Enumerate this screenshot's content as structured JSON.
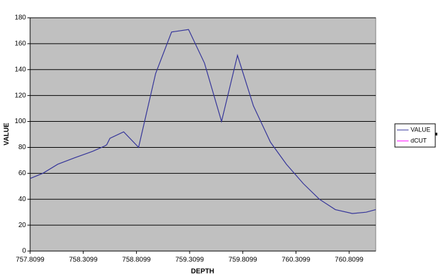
{
  "chart_data": {
    "type": "line",
    "x_label": "DEPTH",
    "y_label": "VALUE",
    "x": [
      757.8099,
      757.93,
      758.07,
      758.23,
      758.4,
      758.51,
      758.53,
      758.56,
      758.69,
      758.83,
      758.99,
      759.14,
      759.3,
      759.45,
      759.61,
      759.76,
      759.91,
      760.07,
      760.22,
      760.38,
      760.53,
      760.68,
      760.84,
      760.97,
      761.06
    ],
    "series": [
      {
        "name": "VALUE",
        "color": "#333399",
        "values": [
          56,
          60,
          67,
          72,
          77,
          81,
          82,
          87,
          92,
          80,
          137,
          169,
          171,
          145,
          100,
          151,
          112,
          84,
          67,
          52,
          40,
          32,
          29,
          30,
          32
        ]
      },
      {
        "name": "dCUT",
        "color": "#ff00ff",
        "values": [
          null,
          null,
          null,
          null,
          null,
          null,
          null,
          null,
          null,
          null,
          null,
          null,
          null,
          null,
          null,
          null,
          null,
          null,
          null,
          null,
          null,
          null,
          null,
          null,
          null
        ]
      }
    ],
    "xlim": [
      757.8099,
      761.06
    ],
    "xticks": [
      757.8099,
      758.3099,
      758.8099,
      759.3099,
      759.8099,
      760.3099,
      760.8099
    ],
    "ylim": [
      0,
      180
    ],
    "yticks": [
      0,
      20,
      40,
      60,
      80,
      100,
      120,
      140,
      160,
      180
    ],
    "grid": true,
    "plot_background": "#c0c0c0",
    "legend": "right"
  }
}
